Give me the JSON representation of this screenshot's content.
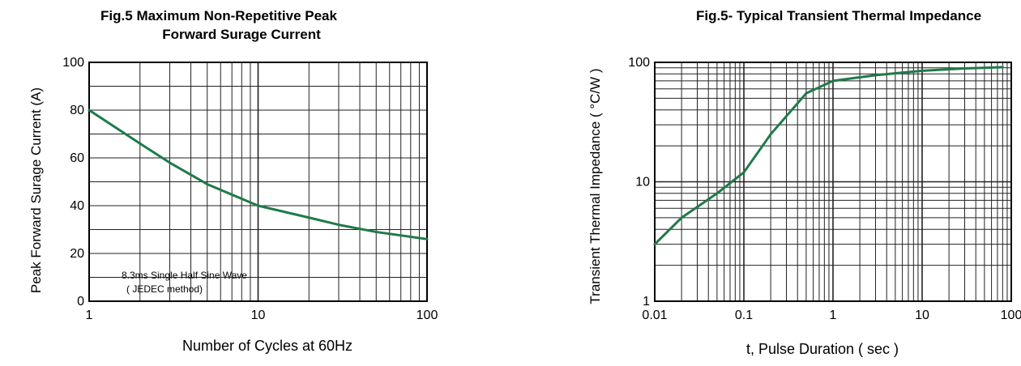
{
  "chart_data": [
    {
      "type": "line",
      "title": "Fig.5  Maximum Non-Repetitive Peak",
      "subtitle": "Forward Surage Current",
      "xlabel": "Number of Cycles at 60Hz",
      "ylabel": "Peak  Forward Surage Current (A)",
      "xscale": "log",
      "xlim": [
        1,
        100
      ],
      "ylim": [
        0,
        100
      ],
      "x_ticks": [
        "1",
        "10",
        "100"
      ],
      "y_ticks": [
        "0",
        "20",
        "40",
        "60",
        "80",
        "100"
      ],
      "grid": true,
      "annotation": [
        "8.3ms Single Half Sine Wave",
        "( JEDEC method)"
      ],
      "series": [
        {
          "color": "#1f7a4a",
          "x": [
            1,
            2,
            3,
            5,
            10,
            20,
            30,
            50,
            100
          ],
          "y": [
            80,
            66,
            58,
            49,
            40,
            35,
            32,
            29,
            26
          ]
        }
      ]
    },
    {
      "type": "line",
      "title": "Fig.5- Typical Transient Thermal Impedance",
      "xlabel": "t, Pulse Duration ( sec )",
      "ylabel": "Transient Thermal Impedance ( °C/W )",
      "xscale": "log",
      "yscale": "log",
      "xlim": [
        0.01,
        100
      ],
      "ylim": [
        1,
        100
      ],
      "x_ticks": [
        "0.01",
        "0.1",
        "1",
        "10",
        "100"
      ],
      "y_ticks": [
        "1",
        "10",
        "100"
      ],
      "grid": true,
      "series": [
        {
          "color": "#1f7a4a",
          "x": [
            0.01,
            0.02,
            0.05,
            0.1,
            0.2,
            0.5,
            1,
            3,
            10,
            30,
            80
          ],
          "y": [
            3,
            5,
            8,
            12,
            25,
            55,
            70,
            78,
            85,
            89,
            91
          ]
        }
      ]
    }
  ]
}
